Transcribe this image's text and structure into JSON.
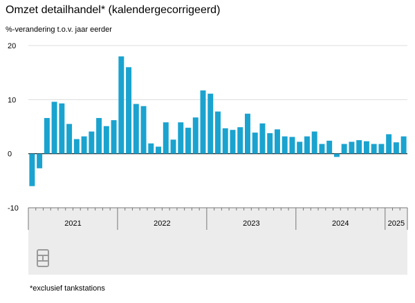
{
  "title": "Omzet detailhandel* (kalendergecorrigeerd)",
  "subtitle": "%-verandering t.o.v. jaar eerder",
  "footnote": "*exclusief tankstations",
  "logo": "cbs-logo",
  "colors": {
    "bar": "#1aa3cf",
    "band": "#ececec",
    "grid": "#dcdcdc"
  },
  "chart_data": {
    "type": "bar",
    "ylabel": "%-verandering t.o.v. jaar eerder",
    "ylim": [
      -10,
      20
    ],
    "yticks": [
      "20",
      "10",
      "0",
      "-10"
    ],
    "grid": true,
    "year_labels": [
      "2021",
      "2022",
      "2023",
      "2024",
      "2025"
    ],
    "categories": [
      "2021-01",
      "2021-02",
      "2021-03",
      "2021-04",
      "2021-05",
      "2021-06",
      "2021-07",
      "2021-08",
      "2021-09",
      "2021-10",
      "2021-11",
      "2021-12",
      "2022-01",
      "2022-02",
      "2022-03",
      "2022-04",
      "2022-05",
      "2022-06",
      "2022-07",
      "2022-08",
      "2022-09",
      "2022-10",
      "2022-11",
      "2022-12",
      "2023-01",
      "2023-02",
      "2023-03",
      "2023-04",
      "2023-05",
      "2023-06",
      "2023-07",
      "2023-08",
      "2023-09",
      "2023-10",
      "2023-11",
      "2023-12",
      "2024-01",
      "2024-02",
      "2024-03",
      "2024-04",
      "2024-05",
      "2024-06",
      "2024-07",
      "2024-08",
      "2024-09",
      "2024-10",
      "2024-11",
      "2024-12",
      "2025-01",
      "2025-02",
      "2025-03"
    ],
    "values": [
      -6.0,
      -2.7,
      6.6,
      9.6,
      9.3,
      5.5,
      2.7,
      3.2,
      4.1,
      6.6,
      5.1,
      6.2,
      18.0,
      16.0,
      9.2,
      8.8,
      1.9,
      1.3,
      5.8,
      2.6,
      5.8,
      4.8,
      6.7,
      11.7,
      11.1,
      7.8,
      4.7,
      4.4,
      4.9,
      7.4,
      3.9,
      5.6,
      3.8,
      4.5,
      3.2,
      3.1,
      2.2,
      3.2,
      4.1,
      1.8,
      2.4,
      -0.6,
      1.8,
      2.2,
      2.5,
      2.3,
      1.8,
      1.8,
      3.6,
      2.1,
      3.2
    ]
  }
}
